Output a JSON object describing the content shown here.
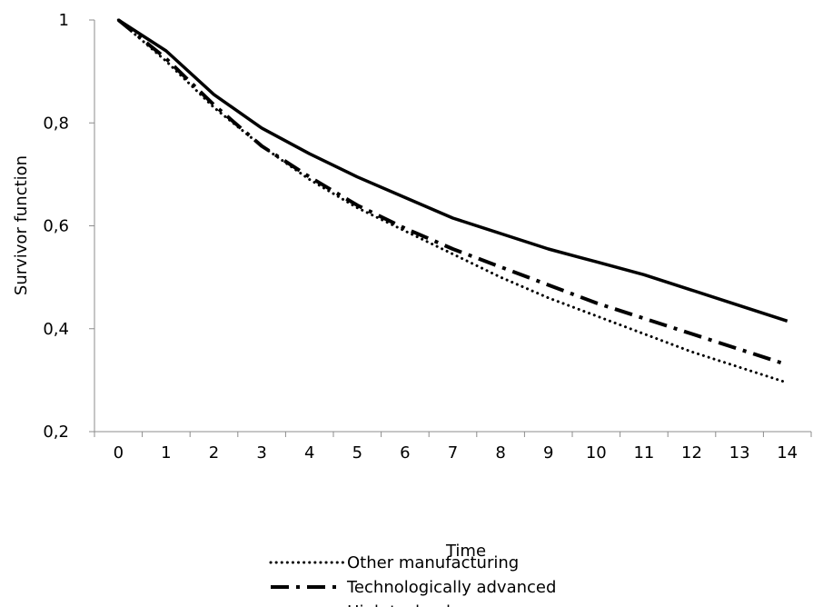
{
  "chart_data": {
    "type": "line",
    "title": "",
    "xlabel": "Time",
    "ylabel": "Survivor function",
    "x": [
      0,
      1,
      2,
      3,
      4,
      5,
      6,
      7,
      8,
      9,
      10,
      11,
      12,
      13,
      14
    ],
    "x_tick_labels": [
      "0",
      "1",
      "2",
      "3",
      "4",
      "5",
      "6",
      "7",
      "8",
      "9",
      "10",
      "11",
      "12",
      "13",
      "14"
    ],
    "xlim": [
      0,
      14
    ],
    "ylim": [
      0.2,
      1.0
    ],
    "y_ticks": [
      0.2,
      0.4,
      0.6,
      0.8,
      1.0
    ],
    "y_tick_labels": [
      "0,2",
      "0,4",
      "0,6",
      "0,8",
      "1"
    ],
    "grid": false,
    "legend_position": "bottom",
    "series": [
      {
        "name": "Other manufacturing",
        "style": "dotted",
        "color": "#000000",
        "values": [
          1.0,
          0.92,
          0.83,
          0.755,
          0.69,
          0.635,
          0.59,
          0.545,
          0.5,
          0.46,
          0.425,
          0.39,
          0.355,
          0.325,
          0.295
        ]
      },
      {
        "name": "Technologically advanced",
        "style": "dash-dot",
        "color": "#000000",
        "values": [
          1.0,
          0.925,
          0.835,
          0.755,
          0.695,
          0.64,
          0.595,
          0.555,
          0.52,
          0.485,
          0.45,
          0.42,
          0.39,
          0.36,
          0.33
        ]
      },
      {
        "name": "High technology",
        "style": "solid",
        "color": "#000000",
        "values": [
          1.0,
          0.94,
          0.855,
          0.79,
          0.74,
          0.695,
          0.655,
          0.615,
          0.585,
          0.555,
          0.53,
          0.505,
          0.475,
          0.445,
          0.415
        ]
      }
    ]
  }
}
